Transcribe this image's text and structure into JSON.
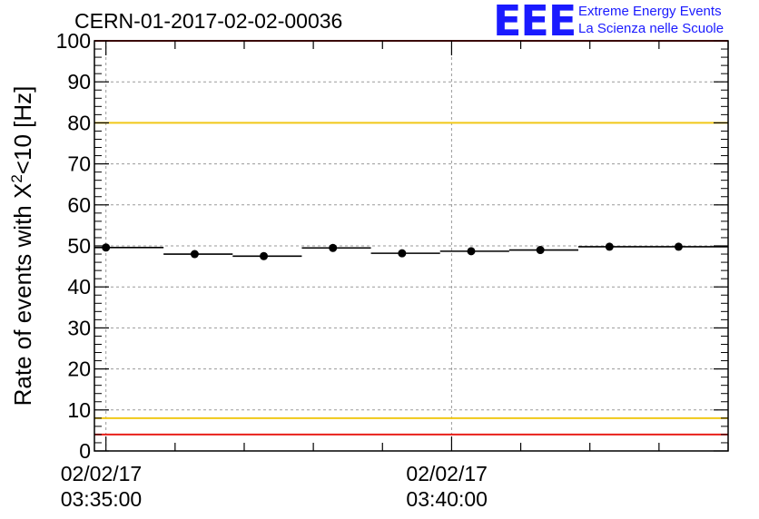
{
  "header": {
    "title": "CERN-01-2017-02-02-00036",
    "logo_mark": "EEE",
    "logo_line1": "Extreme Energy Events",
    "logo_line2": "La Scienza nelle Scuole"
  },
  "chart_data": {
    "type": "scatter",
    "title": "CERN-01-2017-02-02-00036",
    "ylabel": "Rate of events with X",
    "ylabel_sup": "2",
    "ylabel_tail": "<10 [Hz]",
    "ylim": [
      0,
      100
    ],
    "yticks": [
      0,
      10,
      20,
      30,
      40,
      50,
      60,
      70,
      80,
      90,
      100
    ],
    "xticks": [
      {
        "date": "02/02/17",
        "time": "03:35:00",
        "t": 0
      },
      {
        "date": "02/02/17",
        "time": "03:40:00",
        "t": 300
      }
    ],
    "xlim_seconds": [
      -10,
      540
    ],
    "grid": true,
    "points": [
      {
        "t": 0,
        "x_from": -10,
        "x_to": 50,
        "y": 49.6
      },
      {
        "t": 77,
        "x_from": 50,
        "x_to": 110,
        "y": 48.0
      },
      {
        "t": 137,
        "x_from": 110,
        "x_to": 170,
        "y": 47.5
      },
      {
        "t": 197,
        "x_from": 170,
        "x_to": 230,
        "y": 49.5
      },
      {
        "t": 257,
        "x_from": 230,
        "x_to": 290,
        "y": 48.2
      },
      {
        "t": 317,
        "x_from": 290,
        "x_to": 350,
        "y": 48.7
      },
      {
        "t": 377,
        "x_from": 350,
        "x_to": 410,
        "y": 49.0
      },
      {
        "t": 437,
        "x_from": 410,
        "x_to": 475,
        "y": 49.8
      },
      {
        "t": 497,
        "x_from": 475,
        "x_to": 540,
        "y": 49.8
      }
    ],
    "reference_lines": [
      {
        "y": 100,
        "color": "#e8201a"
      },
      {
        "y": 80,
        "color": "#f0c818"
      },
      {
        "y": 8,
        "color": "#f0c818"
      },
      {
        "y": 4,
        "color": "#e8201a"
      }
    ]
  }
}
